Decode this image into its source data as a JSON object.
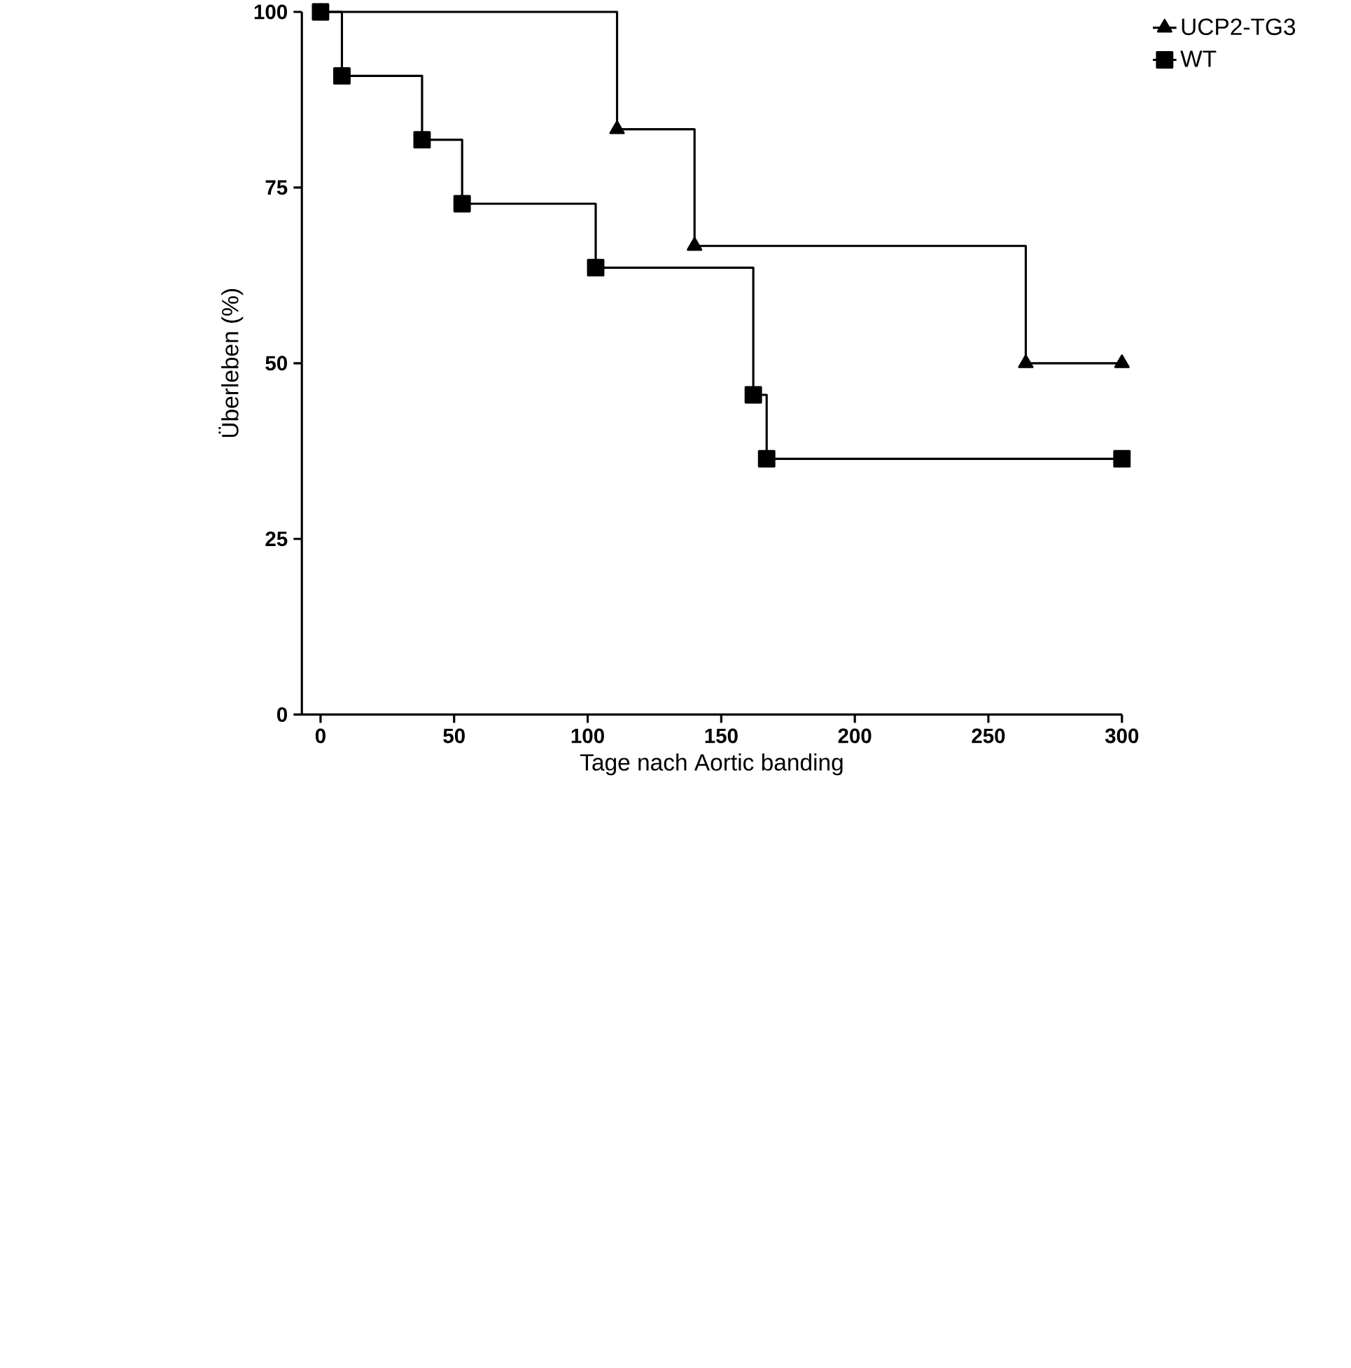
{
  "chart_data": {
    "type": "step",
    "xlabel": "Tage nach Aortic banding",
    "ylabel": "Überleben (%)",
    "xlim": [
      -7,
      300
    ],
    "ylim": [
      0,
      100
    ],
    "xticks": [
      0,
      50,
      100,
      150,
      200,
      250,
      300
    ],
    "yticks": [
      0,
      25,
      50,
      75,
      100
    ],
    "legend": "top right",
    "grid": false,
    "line_style": "solid",
    "series": [
      {
        "name": "UCP2-TG3",
        "color": "#000000",
        "marker": "triangle",
        "x": [
          0,
          111,
          140,
          264,
          300
        ],
        "values": [
          100,
          83.3,
          66.7,
          50,
          50
        ]
      },
      {
        "name": "WT",
        "color": "#000000",
        "marker": "square",
        "x": [
          0,
          8,
          38,
          53,
          103,
          162,
          167,
          300
        ],
        "values": [
          100,
          90.9,
          81.8,
          72.7,
          63.6,
          45.5,
          36.4,
          36.4
        ]
      }
    ]
  }
}
